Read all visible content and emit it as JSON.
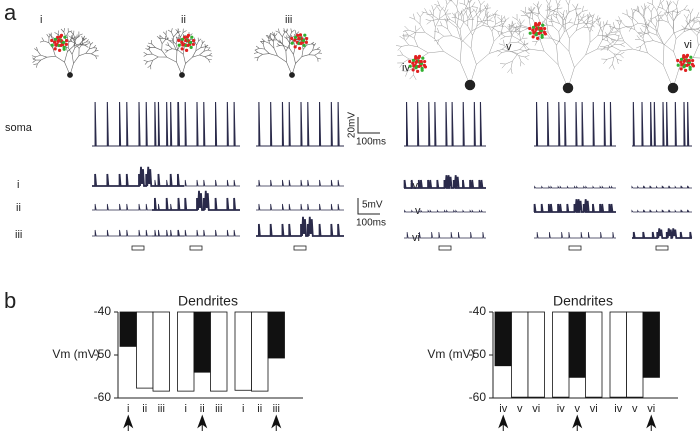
{
  "panel_labels": [
    "a",
    "b"
  ],
  "panel_a": {
    "left": {
      "cell_labels": [
        "i",
        "ii",
        "iii"
      ],
      "soma_label": "soma",
      "dendrite_labels": [
        "i",
        "ii",
        "iii"
      ]
    },
    "right": {
      "cell_labels": [
        "iv",
        "v",
        "vi"
      ],
      "dendrite_labels": [
        "iv",
        "v",
        "vi"
      ]
    },
    "scale_bars": [
      {
        "voltage": "20mV",
        "time": "100ms"
      },
      {
        "voltage": "5mV",
        "time": "100ms"
      }
    ]
  },
  "chart_data": [
    {
      "type": "bar",
      "title": "Dendrites",
      "ylabel": "Vm (mV)",
      "categories": [
        "i",
        "ii",
        "iii",
        "i",
        "ii",
        "iii",
        "i",
        "ii",
        "iii"
      ],
      "values": [
        -48,
        -57.7,
        -58.4,
        -58.4,
        -54,
        -58.4,
        -58.2,
        -58.4,
        -50.7
      ],
      "colors": [
        "#111111",
        "#ffffff",
        "#ffffff",
        "#ffffff",
        "#111111",
        "#ffffff",
        "#ffffff",
        "#ffffff",
        "#111111"
      ],
      "highlight": [
        0,
        4,
        8
      ],
      "ylim": [
        -60,
        -40
      ],
      "yticks": [
        -40,
        -50,
        -60
      ]
    },
    {
      "type": "bar",
      "title": "Dendrites",
      "ylabel": "Vm (mV)",
      "categories": [
        "iv",
        "v",
        "vi",
        "iv",
        "v",
        "vi",
        "iv",
        "v",
        "vi"
      ],
      "values": [
        -52.5,
        -59.8,
        -59.8,
        -59.8,
        -55.2,
        -59.8,
        -59.8,
        -59.8,
        -55.2
      ],
      "colors": [
        "#111111",
        "#ffffff",
        "#ffffff",
        "#ffffff",
        "#111111",
        "#ffffff",
        "#ffffff",
        "#ffffff",
        "#111111"
      ],
      "highlight": [
        0,
        4,
        8
      ],
      "ylim": [
        -60,
        -40
      ],
      "yticks": [
        -40,
        -50,
        -60
      ]
    }
  ]
}
